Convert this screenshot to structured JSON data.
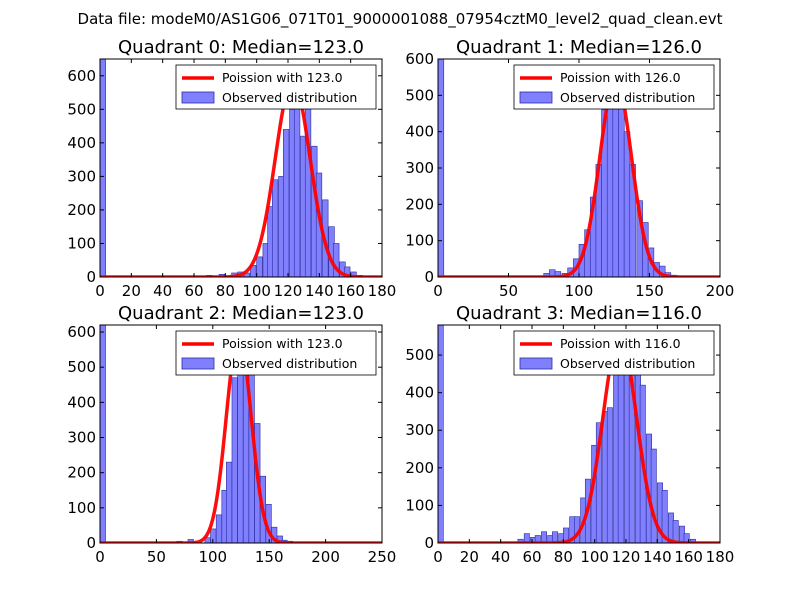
{
  "figure": {
    "suptitle": "Data file: modeM0/AS1G06_071T01_9000001088_07954cztM0_level2_quad_clean.evt"
  },
  "colors": {
    "bar_fill": "#8080ff",
    "bar_edge": "#2a2aa0",
    "fit_line": "#ff0000",
    "axes": "#000000"
  },
  "chart_data": [
    {
      "type": "bar",
      "title": "Quadrant 0: Median=123.0",
      "xlim": [
        0,
        180
      ],
      "ylim": [
        0,
        650
      ],
      "xticks": [
        0,
        20,
        40,
        60,
        80,
        100,
        120,
        140,
        160,
        180
      ],
      "yticks": [
        0,
        100,
        200,
        300,
        400,
        500,
        600
      ],
      "legend": [
        "Poission with 123.0",
        "Observed distribution"
      ],
      "legend_position": "top-right",
      "median": 123.0,
      "fit_peak": 585,
      "bin_width": 3.6,
      "bins": [
        [
          0,
          650
        ],
        [
          68,
          5
        ],
        [
          76,
          8
        ],
        [
          84,
          12
        ],
        [
          88,
          15
        ],
        [
          92,
          12
        ],
        [
          96,
          35
        ],
        [
          100,
          60
        ],
        [
          104,
          100
        ],
        [
          107,
          210
        ],
        [
          110,
          290
        ],
        [
          114,
          300
        ],
        [
          117,
          440
        ],
        [
          121,
          500
        ],
        [
          124,
          580
        ],
        [
          128,
          420
        ],
        [
          131,
          600
        ],
        [
          135,
          390
        ],
        [
          138,
          310
        ],
        [
          142,
          230
        ],
        [
          146,
          150
        ],
        [
          149,
          100
        ],
        [
          153,
          45
        ],
        [
          156,
          30
        ],
        [
          160,
          15
        ],
        [
          164,
          5
        ]
      ]
    },
    {
      "type": "bar",
      "title": "Quadrant 1: Median=126.0",
      "xlim": [
        0,
        200
      ],
      "ylim": [
        0,
        600
      ],
      "xticks": [
        0,
        50,
        100,
        150,
        200
      ],
      "yticks": [
        0,
        100,
        200,
        300,
        400,
        500,
        600
      ],
      "legend": [
        "Poission with 126.0",
        "Observed distribution"
      ],
      "legend_position": "top-right",
      "median": 126.0,
      "fit_peak": 545,
      "bin_width": 4.1,
      "bins": [
        [
          0,
          600
        ],
        [
          75,
          10
        ],
        [
          79,
          20
        ],
        [
          83,
          15
        ],
        [
          88,
          10
        ],
        [
          92,
          25
        ],
        [
          96,
          50
        ],
        [
          100,
          90
        ],
        [
          104,
          130
        ],
        [
          108,
          220
        ],
        [
          112,
          310
        ],
        [
          116,
          460
        ],
        [
          120,
          500
        ],
        [
          124,
          480
        ],
        [
          128,
          500
        ],
        [
          132,
          400
        ],
        [
          136,
          310
        ],
        [
          141,
          210
        ],
        [
          145,
          150
        ],
        [
          149,
          80
        ],
        [
          153,
          40
        ],
        [
          157,
          30
        ],
        [
          161,
          12
        ],
        [
          165,
          5
        ]
      ]
    },
    {
      "type": "bar",
      "title": "Quadrant 2: Median=123.0",
      "xlim": [
        0,
        250
      ],
      "ylim": [
        0,
        620
      ],
      "xticks": [
        0,
        50,
        100,
        150,
        200,
        250
      ],
      "yticks": [
        0,
        100,
        200,
        300,
        400,
        500,
        600
      ],
      "legend": [
        "Poission with 123.0",
        "Observed distribution"
      ],
      "legend_position": "top-right",
      "median": 123.0,
      "fit_peak": 590,
      "bin_width": 4.9,
      "bins": [
        [
          0,
          620
        ],
        [
          68,
          5
        ],
        [
          78,
          10
        ],
        [
          93,
          15
        ],
        [
          98,
          40
        ],
        [
          103,
          80
        ],
        [
          108,
          150
        ],
        [
          112,
          230
        ],
        [
          117,
          470
        ],
        [
          122,
          500
        ],
        [
          127,
          560
        ],
        [
          132,
          500
        ],
        [
          137,
          340
        ],
        [
          142,
          190
        ],
        [
          147,
          110
        ],
        [
          152,
          45
        ],
        [
          157,
          20
        ],
        [
          161,
          8
        ],
        [
          166,
          5
        ]
      ]
    },
    {
      "type": "bar",
      "title": "Quadrant 3: Median=116.0",
      "xlim": [
        0,
        180
      ],
      "ylim": [
        0,
        580
      ],
      "xticks": [
        0,
        20,
        40,
        60,
        80,
        100,
        120,
        140,
        160,
        180
      ],
      "yticks": [
        0,
        100,
        200,
        300,
        400,
        500
      ],
      "legend": [
        "Poission with 116.0",
        "Observed distribution"
      ],
      "legend_position": "top-right",
      "median": 116.0,
      "fit_peak": 550,
      "bin_width": 3.4,
      "bins": [
        [
          0,
          580
        ],
        [
          51,
          10
        ],
        [
          55,
          25
        ],
        [
          59,
          15
        ],
        [
          62,
          20
        ],
        [
          66,
          30
        ],
        [
          70,
          20
        ],
        [
          73,
          30
        ],
        [
          77,
          25
        ],
        [
          80,
          40
        ],
        [
          84,
          70
        ],
        [
          87,
          70
        ],
        [
          91,
          120
        ],
        [
          94,
          170
        ],
        [
          98,
          260
        ],
        [
          101,
          320
        ],
        [
          105,
          350
        ],
        [
          108,
          360
        ],
        [
          112,
          490
        ],
        [
          115,
          500
        ],
        [
          119,
          520
        ],
        [
          122,
          460
        ],
        [
          126,
          460
        ],
        [
          129,
          420
        ],
        [
          133,
          290
        ],
        [
          136,
          250
        ],
        [
          140,
          160
        ],
        [
          143,
          140
        ],
        [
          147,
          80
        ],
        [
          150,
          60
        ],
        [
          154,
          45
        ],
        [
          157,
          25
        ],
        [
          161,
          10
        ]
      ]
    }
  ]
}
